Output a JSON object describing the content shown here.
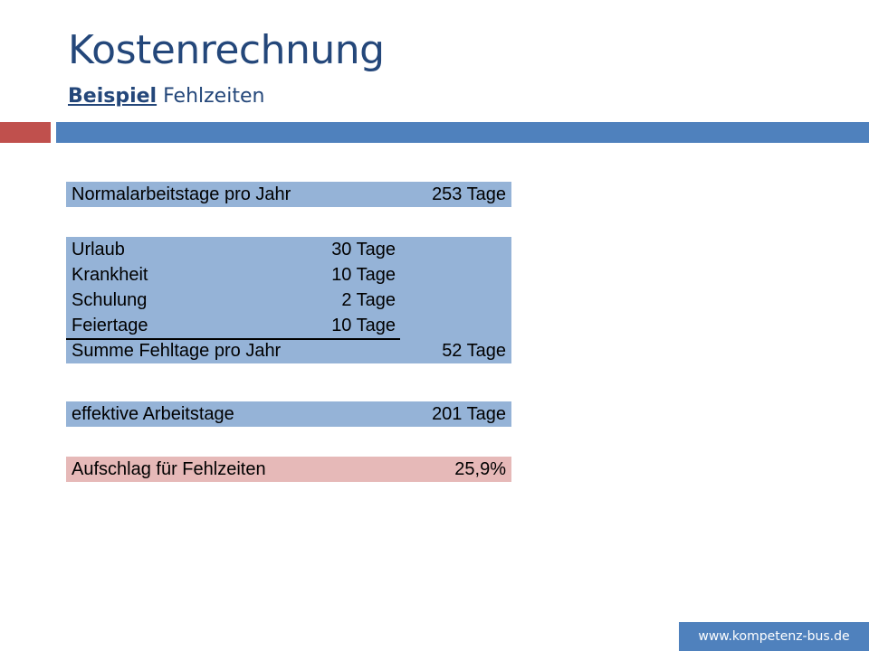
{
  "slide": {
    "title": "Kostenrechnung",
    "subtitle_bold": "Beispiel",
    "subtitle_rest": "Fehlzeiten"
  },
  "table1": {
    "label": "Normalarbeitstage pro Jahr",
    "value": "253 Tage"
  },
  "table2": {
    "items": [
      {
        "label": "Urlaub",
        "value": "30 Tage"
      },
      {
        "label": "Krankheit",
        "value": "10 Tage"
      },
      {
        "label": "Schulung",
        "value": "2 Tage"
      },
      {
        "label": "Feiertage",
        "value": "10 Tage"
      }
    ],
    "sum_label": "Summe Fehltage pro Jahr",
    "sum_value": "52 Tage"
  },
  "table3": {
    "label": "effektive Arbeitstage",
    "value": "201 Tage"
  },
  "table4": {
    "label": "Aufschlag für Fehlzeiten",
    "value": "25,9%"
  },
  "footer": {
    "url": "www.kompetenz-bus.de"
  },
  "colors": {
    "title": "#24477a",
    "accent_red": "#c0504d",
    "accent_blue": "#4f81bd",
    "table_blue": "#95b3d7",
    "table_red": "#e6b9b8"
  }
}
